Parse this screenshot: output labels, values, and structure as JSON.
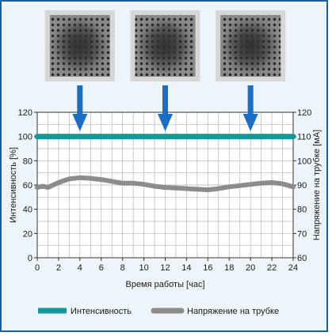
{
  "chart_data": {
    "type": "line",
    "xlabel": "Время работы [час]",
    "ylabel_left": "Интенсивность [%]",
    "ylabel_right": "Напряжение на трубке [мА]",
    "xlim": [
      0,
      24
    ],
    "ylim_left": [
      0,
      120
    ],
    "ylim_right": [
      60,
      120
    ],
    "x_ticks": [
      0,
      2,
      4,
      6,
      8,
      10,
      12,
      14,
      16,
      18,
      20,
      22,
      24
    ],
    "y_left_ticks": [
      0,
      20,
      40,
      60,
      80,
      100,
      120
    ],
    "y_right_ticks": [
      60,
      70,
      80,
      90,
      100,
      110,
      120
    ],
    "grid": true,
    "legend_position": "bottom",
    "series": [
      {
        "name": "Интенсивность",
        "axis": "left",
        "color": "#129a98",
        "x": [
          0,
          24
        ],
        "y": [
          100,
          100
        ]
      },
      {
        "name": "Напряжение на трубке",
        "axis": "left",
        "color": "#8c8c8c",
        "x": [
          0,
          0.5,
          1,
          1.5,
          2,
          3,
          4,
          5,
          6,
          7,
          8,
          9,
          10,
          11,
          12,
          13,
          14,
          15,
          16,
          17,
          18,
          19,
          20,
          21,
          22,
          23,
          24
        ],
        "y": [
          58,
          59,
          58,
          60,
          62,
          65,
          66,
          65.5,
          64.5,
          63,
          61.5,
          61.5,
          60.5,
          59,
          58,
          57.5,
          57,
          56.5,
          56,
          57,
          58.5,
          59.5,
          60.5,
          61.5,
          62,
          61,
          58.5
        ]
      }
    ],
    "arrow_times": [
      4,
      12,
      20
    ],
    "arrow_color": "#1a6fc4",
    "sample_images": [
      {
        "label": "xray-sample-1"
      },
      {
        "label": "xray-sample-2"
      },
      {
        "label": "xray-sample-3"
      }
    ]
  }
}
